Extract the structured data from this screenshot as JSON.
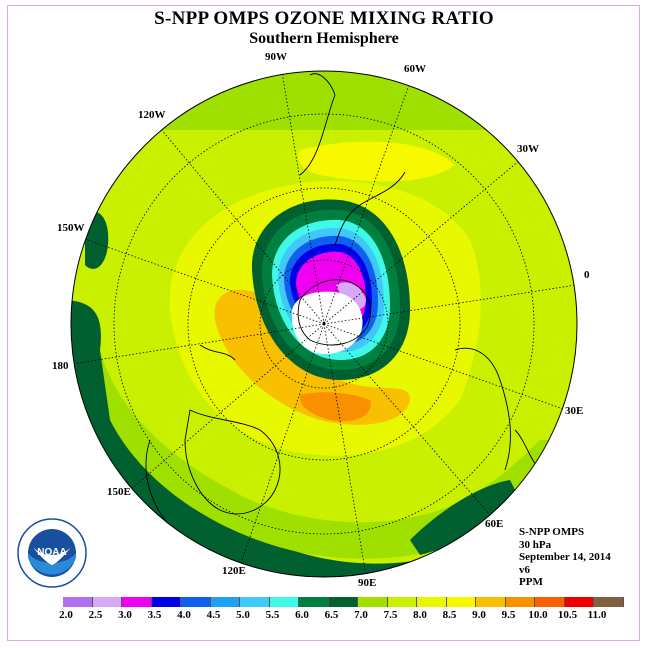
{
  "title": "S-NPP OMPS OZONE MIXING RATIO",
  "subtitle": "Southern Hemisphere",
  "lon_labels": {
    "w90": "90W",
    "w60": "60W",
    "w30": "30W",
    "e0": "0",
    "w120": "120W",
    "w150": "150W",
    "w180": "180",
    "e30": "30E",
    "e60": "60E",
    "e90": "90E",
    "e120": "120E",
    "e150": "150E"
  },
  "info": {
    "instrument": "S-NPP OMPS",
    "level": "30 hPa",
    "date": "September 14, 2014",
    "version": "v6",
    "units": "PPM"
  },
  "logo_text": "NOAA",
  "colorbar": {
    "colors": [
      "#b070f0",
      "#d8a8f8",
      "#f000f0",
      "#0000e8",
      "#1060f0",
      "#20a0f0",
      "#40c8f8",
      "#40f8e8",
      "#008040",
      "#006030",
      "#a0e000",
      "#c8f000",
      "#e8f800",
      "#f8f800",
      "#f8c000",
      "#f89000",
      "#f86000",
      "#f00000",
      "#806040"
    ],
    "ticks": [
      "2.0",
      "2.5",
      "3.0",
      "3.5",
      "4.0",
      "4.5",
      "5.0",
      "5.5",
      "6.0",
      "6.5",
      "7.0",
      "7.5",
      "8.0",
      "8.5",
      "9.0",
      "9.5",
      "10.0",
      "10.5",
      "11.0"
    ]
  }
}
